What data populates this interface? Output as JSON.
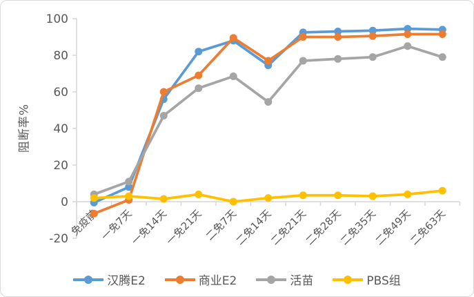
{
  "chart_data": {
    "type": "line",
    "title": "",
    "ylabel": "阻断率%",
    "xlabel": "",
    "ylim": [
      -20,
      100
    ],
    "yticks": [
      100,
      80,
      60,
      40,
      20,
      0,
      -20
    ],
    "grid": false,
    "legend_position": "bottom",
    "categories": [
      "免疫前",
      "一免7天",
      "一免14天",
      "一免21天",
      "二免7天",
      "二免14天",
      "二免21天",
      "二免28天",
      "二免35天",
      "二免49天",
      "二免63天"
    ],
    "series": [
      {
        "name": "汉腾E2",
        "color": "#5B9BD5",
        "values": [
          -0.5,
          8,
          56,
          82,
          88,
          74.5,
          92.5,
          93,
          93.5,
          94.5,
          94
        ]
      },
      {
        "name": "商业E2",
        "color": "#ED7D31",
        "values": [
          -6.5,
          1,
          60,
          69,
          89.5,
          77,
          90,
          90,
          90.5,
          91.5,
          91.5
        ]
      },
      {
        "name": "活苗",
        "color": "#A5A5A5",
        "values": [
          4,
          11,
          47,
          62,
          68.5,
          54.5,
          77,
          78,
          79,
          85,
          79
        ]
      },
      {
        "name": "PBS组",
        "color": "#FFC000",
        "values": [
          2,
          3,
          1.5,
          4,
          0,
          2,
          3.5,
          3.5,
          3,
          4,
          6
        ]
      }
    ],
    "axis_color": "#D6D6D6",
    "tick_label_color": "#595959"
  }
}
